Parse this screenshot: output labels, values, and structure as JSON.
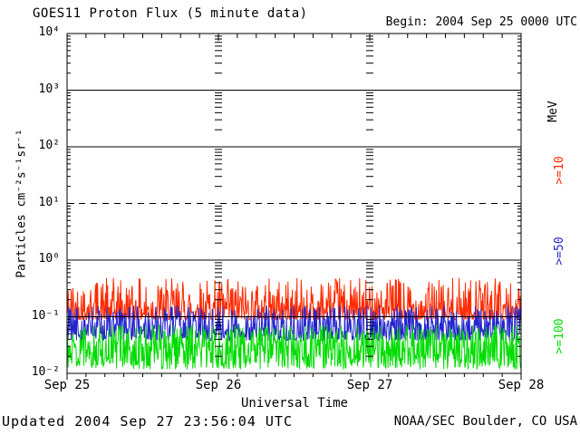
{
  "page": {
    "background": "#ffffff",
    "text_color": "#000000"
  },
  "header": {
    "title": "GOES11 Proton Flux (5 minute data)",
    "begin_label": "Begin: 2004 Sep 25 0000 UTC"
  },
  "footer": {
    "updated": "Updated 2004 Sep 27 23:56:04 UTC",
    "source": "NOAA/SEC Boulder, CO USA"
  },
  "chart_data": {
    "type": "line",
    "title": "GOES11 Proton Flux (5 minute data)",
    "begin": "2004 Sep 25 0000 UTC",
    "xlabel": "Universal Time",
    "ylabel": "Particles cm⁻²s⁻¹sr⁻¹",
    "units_label": "MeV",
    "x_ticks": [
      "Sep 25",
      "Sep 26",
      "Sep 27",
      "Sep 28"
    ],
    "y_ticks": [
      "10⁴",
      "10³",
      "10²",
      "10¹",
      "10⁰",
      "10⁻¹",
      "10⁻²"
    ],
    "ylim_log10": [
      -2,
      4
    ],
    "x_range_days": 3,
    "cadence_minutes": 5,
    "points_per_day": 288,
    "x_minor_tick_hours": 3,
    "grid": {
      "solid_decade_lines_log10": [
        3,
        2,
        0,
        -1
      ],
      "dashed_decade_lines_log10": [
        1
      ],
      "day_boundary_tick_columns": [
        "Sep 26",
        "Sep 27"
      ]
    },
    "series": [
      {
        "name": "Protons >=10 MeV",
        "legend": ">=10",
        "color": "#ff2a00",
        "approx_flux_min": 0.09,
        "approx_flux_median": 0.12,
        "approx_flux_max": 0.5,
        "log10_min": -1.05,
        "log10_max": -0.31,
        "spike_bias": 2.3
      },
      {
        "name": "Protons >=50 MeV",
        "legend": ">=50",
        "color": "#2424cf",
        "approx_flux_min": 0.038,
        "approx_flux_median": 0.06,
        "approx_flux_max": 0.16,
        "log10_min": -1.42,
        "log10_max": -0.8,
        "spike_bias": 1.7
      },
      {
        "name": "Protons >=100 MeV",
        "legend": ">=100",
        "color": "#00dc00",
        "approx_flux_min": 0.012,
        "approx_flux_median": 0.027,
        "approx_flux_max": 0.072,
        "log10_min": -1.93,
        "log10_max": -1.14,
        "spike_bias": 1.15
      }
    ]
  }
}
